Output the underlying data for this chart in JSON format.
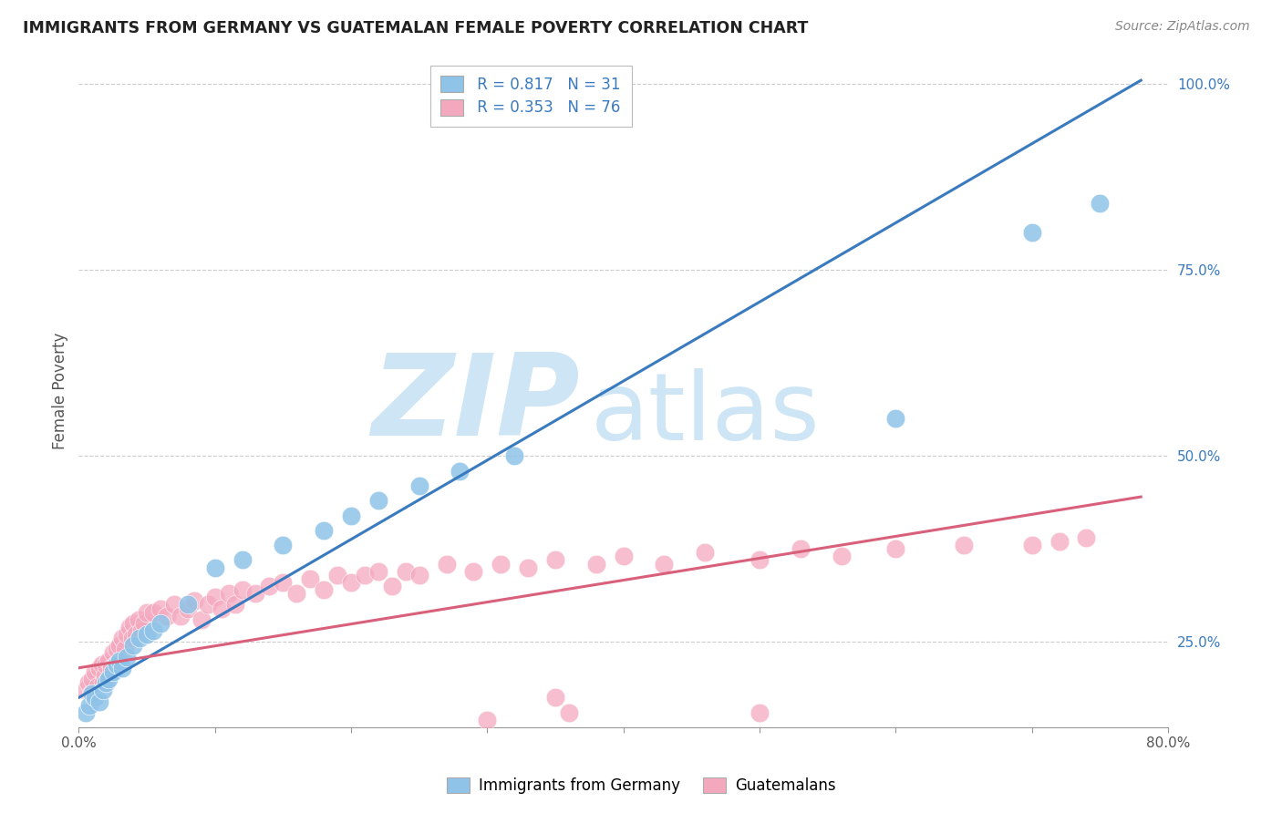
{
  "title": "IMMIGRANTS FROM GERMANY VS GUATEMALAN FEMALE POVERTY CORRELATION CHART",
  "source_text": "Source: ZipAtlas.com",
  "ylabel": "Female Poverty",
  "legend_label_blue": "Immigrants from Germany",
  "legend_label_pink": "Guatemalans",
  "R_blue": 0.817,
  "N_blue": 31,
  "R_pink": 0.353,
  "N_pink": 76,
  "x_min": 0.0,
  "x_max": 0.8,
  "y_min": 0.135,
  "y_max": 1.04,
  "x_ticks": [
    0.0,
    0.1,
    0.2,
    0.3,
    0.4,
    0.5,
    0.6,
    0.7,
    0.8
  ],
  "x_tick_labels": [
    "0.0%",
    "",
    "",
    "",
    "",
    "",
    "",
    "",
    "80.0%"
  ],
  "y_ticks_right": [
    0.25,
    0.5,
    0.75,
    1.0
  ],
  "y_tick_labels_right": [
    "25.0%",
    "50.0%",
    "75.0%",
    "100.0%"
  ],
  "color_blue": "#8fc3e8",
  "color_blue_line": "#3a7abf",
  "color_pink": "#f4a8be",
  "color_pink_line": "#d9607a",
  "background_color": "#ffffff",
  "grid_color": "#cccccc",
  "watermark_color": "#cde5f5",
  "blue_line_x0": 0.0,
  "blue_line_y0": 0.175,
  "blue_line_x1": 0.78,
  "blue_line_y1": 1.005,
  "pink_line_x0": 0.0,
  "pink_line_y0": 0.215,
  "pink_line_x1": 0.78,
  "pink_line_y1": 0.445,
  "blue_x": [
    0.005,
    0.008,
    0.01,
    0.012,
    0.015,
    0.018,
    0.02,
    0.022,
    0.025,
    0.028,
    0.03,
    0.032,
    0.035,
    0.04,
    0.045,
    0.05,
    0.055,
    0.06,
    0.08,
    0.1,
    0.12,
    0.15,
    0.18,
    0.2,
    0.22,
    0.25,
    0.28,
    0.32,
    0.6,
    0.7,
    0.75
  ],
  "blue_y": [
    0.155,
    0.165,
    0.18,
    0.175,
    0.17,
    0.185,
    0.195,
    0.2,
    0.21,
    0.22,
    0.225,
    0.215,
    0.23,
    0.245,
    0.255,
    0.26,
    0.265,
    0.275,
    0.3,
    0.35,
    0.36,
    0.38,
    0.4,
    0.42,
    0.44,
    0.46,
    0.48,
    0.5,
    0.55,
    0.8,
    0.84
  ],
  "pink_x": [
    0.005,
    0.007,
    0.009,
    0.01,
    0.012,
    0.014,
    0.015,
    0.017,
    0.018,
    0.019,
    0.02,
    0.022,
    0.024,
    0.025,
    0.027,
    0.028,
    0.03,
    0.032,
    0.034,
    0.035,
    0.037,
    0.039,
    0.04,
    0.042,
    0.044,
    0.046,
    0.048,
    0.05,
    0.055,
    0.06,
    0.065,
    0.07,
    0.075,
    0.08,
    0.085,
    0.09,
    0.095,
    0.1,
    0.105,
    0.11,
    0.115,
    0.12,
    0.13,
    0.14,
    0.15,
    0.16,
    0.17,
    0.18,
    0.19,
    0.2,
    0.21,
    0.22,
    0.23,
    0.24,
    0.25,
    0.27,
    0.29,
    0.31,
    0.33,
    0.35,
    0.38,
    0.4,
    0.43,
    0.46,
    0.5,
    0.53,
    0.56,
    0.6,
    0.65,
    0.7,
    0.72,
    0.74,
    0.5,
    0.3,
    0.35,
    0.36
  ],
  "pink_y": [
    0.185,
    0.195,
    0.18,
    0.2,
    0.21,
    0.19,
    0.215,
    0.22,
    0.195,
    0.205,
    0.22,
    0.225,
    0.215,
    0.235,
    0.22,
    0.24,
    0.245,
    0.255,
    0.24,
    0.26,
    0.27,
    0.255,
    0.275,
    0.26,
    0.28,
    0.265,
    0.275,
    0.29,
    0.29,
    0.295,
    0.285,
    0.3,
    0.285,
    0.295,
    0.305,
    0.28,
    0.3,
    0.31,
    0.295,
    0.315,
    0.3,
    0.32,
    0.315,
    0.325,
    0.33,
    0.315,
    0.335,
    0.32,
    0.34,
    0.33,
    0.34,
    0.345,
    0.325,
    0.345,
    0.34,
    0.355,
    0.345,
    0.355,
    0.35,
    0.36,
    0.355,
    0.365,
    0.355,
    0.37,
    0.36,
    0.375,
    0.365,
    0.375,
    0.38,
    0.38,
    0.385,
    0.39,
    0.155,
    0.145,
    0.175,
    0.155
  ]
}
